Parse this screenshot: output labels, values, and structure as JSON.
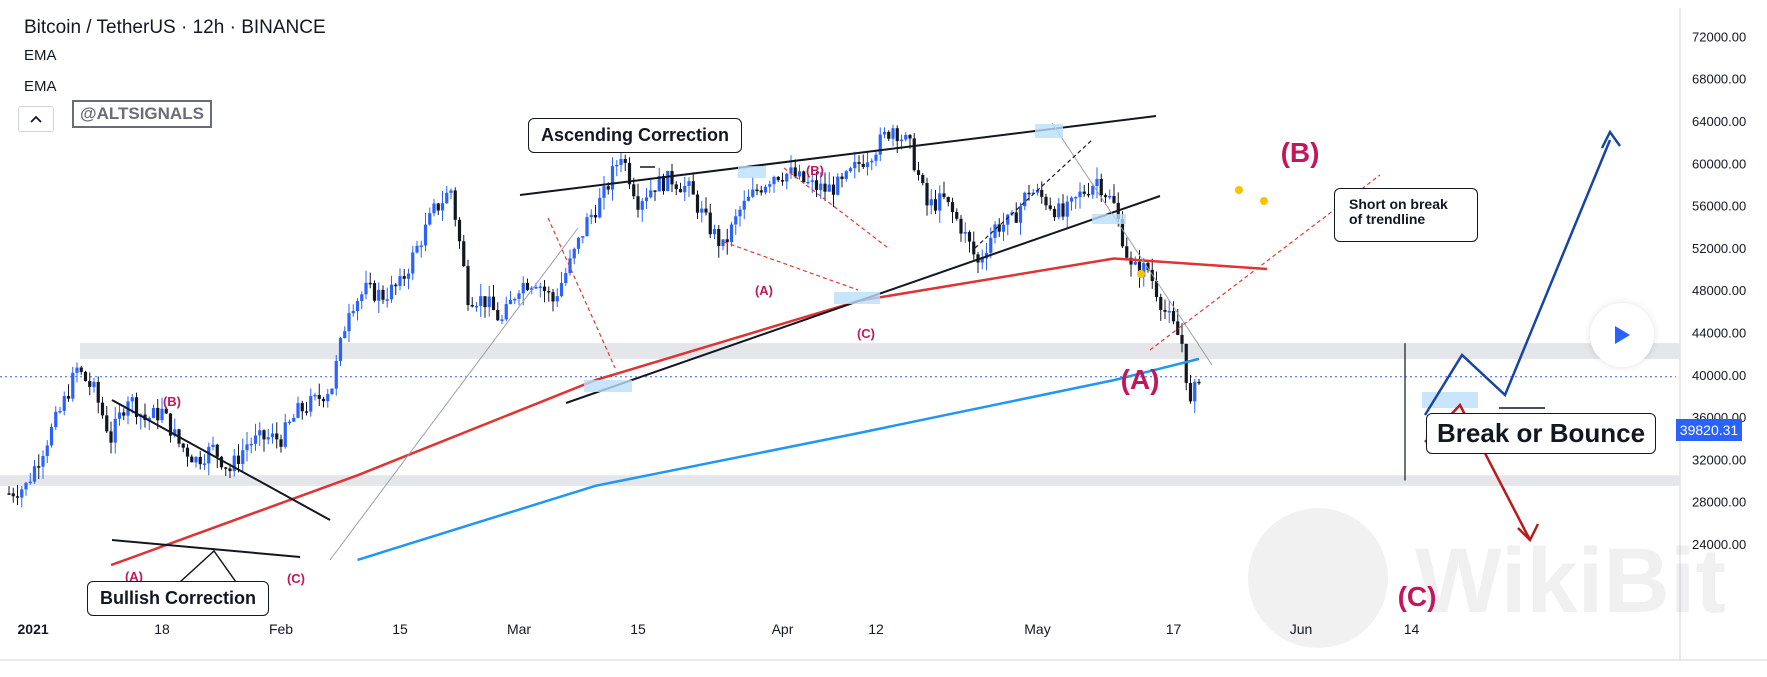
{
  "header": {
    "title": "Bitcoin / TetherUS · 12h · BINANCE",
    "indicators": [
      "EMA",
      "EMA"
    ],
    "tag": "@ALTSIGNALS"
  },
  "annotations": {
    "ascending_correction": "Ascending Correction",
    "bullish_correction": "Bullish Correction",
    "short_on_break": "Short on break\nof trendline",
    "break_or_bounce": "Break or Bounce",
    "waves_big": {
      "A": "(A)",
      "B": "(B)",
      "C": "(C)"
    },
    "waves_small_1": {
      "A": "(A)",
      "B": "(B)",
      "C": "(C)"
    },
    "waves_small_2": {
      "A": "(A)",
      "B": "(B)",
      "C": "(C)"
    }
  },
  "price_label": "39820.31",
  "watermark": "WikiBit",
  "colors": {
    "up": "#2962ff",
    "down": "#131722",
    "ema_slow": "#e03333",
    "ema_fast": "#2196f3",
    "wave_text": "#c2185b",
    "zone": "#e4e6ea",
    "forecast_up": "#1746a2",
    "forecast_down": "#b71c1c"
  },
  "chart_data": {
    "type": "candlestick",
    "title": "Bitcoin / TetherUS · 12h · BINANCE",
    "y_axis": {
      "ticks": [
        "72000.00",
        "68000.00",
        "64000.00",
        "60000.00",
        "56000.00",
        "52000.00",
        "48000.00",
        "44000.00",
        "40000.00",
        "36000.00",
        "32000.00",
        "28000.00",
        "24000.00"
      ],
      "range": [
        22500,
        73500
      ]
    },
    "x_axis": {
      "ticks": [
        "2021",
        "18",
        "Feb",
        "15",
        "Mar",
        "15",
        "Apr",
        "12",
        "May",
        "17",
        "Jun",
        "14"
      ]
    },
    "last_price": 39820.31,
    "price_path": [
      [
        "2020-12-31",
        28800
      ],
      [
        "2021-01-02",
        29500
      ],
      [
        "2021-01-04",
        33000
      ],
      [
        "2021-01-06",
        36500
      ],
      [
        "2021-01-08",
        40500
      ],
      [
        "2021-01-10",
        38500
      ],
      [
        "2021-01-12",
        34000
      ],
      [
        "2021-01-14",
        38000
      ],
      [
        "2021-01-16",
        35800
      ],
      [
        "2021-01-18",
        36500
      ],
      [
        "2021-01-20",
        33500
      ],
      [
        "2021-01-22",
        32000
      ],
      [
        "2021-01-24",
        33000
      ],
      [
        "2021-01-26",
        31000
      ],
      [
        "2021-01-28",
        33500
      ],
      [
        "2021-01-30",
        34000
      ],
      [
        "2021-02-01",
        34000
      ],
      [
        "2021-02-03",
        36500
      ],
      [
        "2021-02-05",
        37500
      ],
      [
        "2021-02-07",
        39000
      ],
      [
        "2021-02-09",
        46500
      ],
      [
        "2021-02-11",
        48000
      ],
      [
        "2021-02-13",
        47500
      ],
      [
        "2021-02-15",
        48500
      ],
      [
        "2021-02-17",
        52000
      ],
      [
        "2021-02-19",
        55500
      ],
      [
        "2021-02-21",
        57500
      ],
      [
        "2021-02-23",
        47500
      ],
      [
        "2021-02-25",
        47000
      ],
      [
        "2021-02-27",
        45000
      ],
      [
        "2021-03-01",
        48500
      ],
      [
        "2021-03-03",
        49000
      ],
      [
        "2021-03-05",
        47000
      ],
      [
        "2021-03-07",
        50500
      ],
      [
        "2021-03-09",
        54500
      ],
      [
        "2021-03-11",
        57000
      ],
      [
        "2021-03-13",
        61000
      ],
      [
        "2021-03-15",
        56500
      ],
      [
        "2021-03-17",
        58000
      ],
      [
        "2021-03-19",
        58500
      ],
      [
        "2021-03-21",
        57500
      ],
      [
        "2021-03-23",
        54500
      ],
      [
        "2021-03-25",
        52000
      ],
      [
        "2021-03-27",
        55500
      ],
      [
        "2021-03-29",
        57500
      ],
      [
        "2021-03-31",
        59000
      ],
      [
        "2021-04-02",
        59000
      ],
      [
        "2021-04-04",
        58000
      ],
      [
        "2021-04-06",
        57500
      ],
      [
        "2021-04-08",
        58000
      ],
      [
        "2021-04-10",
        60000
      ],
      [
        "2021-04-12",
        61500
      ],
      [
        "2021-04-14",
        63500
      ],
      [
        "2021-04-16",
        61500
      ],
      [
        "2021-04-18",
        56000
      ],
      [
        "2021-04-20",
        56500
      ],
      [
        "2021-04-22",
        54000
      ],
      [
        "2021-04-24",
        50500
      ],
      [
        "2021-04-26",
        54000
      ],
      [
        "2021-04-28",
        54500
      ],
      [
        "2021-04-30",
        57500
      ],
      [
        "2021-05-02",
        56500
      ],
      [
        "2021-05-04",
        55000
      ],
      [
        "2021-05-06",
        57000
      ],
      [
        "2021-05-08",
        58500
      ],
      [
        "2021-05-10",
        56000
      ],
      [
        "2021-05-12",
        50000
      ],
      [
        "2021-05-14",
        50000
      ],
      [
        "2021-05-16",
        46000
      ],
      [
        "2021-05-18",
        43000
      ],
      [
        "2021-05-19",
        37000
      ],
      [
        "2021-05-20",
        40000
      ]
    ],
    "series": [
      {
        "name": "EMA",
        "color": "#e03333",
        "values": [
          [
            22000,
            "2021-01-12"
          ],
          [
            30500,
            "2021-02-10"
          ],
          [
            39500,
            "2021-03-10"
          ],
          [
            47000,
            "2021-04-10"
          ],
          [
            51000,
            "2021-05-10"
          ],
          [
            50000,
            "2021-05-28"
          ]
        ]
      },
      {
        "name": "EMA",
        "color": "#2196f3",
        "values": [
          [
            22500,
            "2021-02-10"
          ],
          [
            29500,
            "2021-03-10"
          ],
          [
            34500,
            "2021-04-10"
          ],
          [
            39500,
            "2021-05-10"
          ],
          [
            41500,
            "2021-05-20"
          ]
        ]
      }
    ],
    "zones": [
      {
        "from": 41500,
        "to": 43000
      },
      {
        "from": 29500,
        "to": 30500
      }
    ]
  }
}
